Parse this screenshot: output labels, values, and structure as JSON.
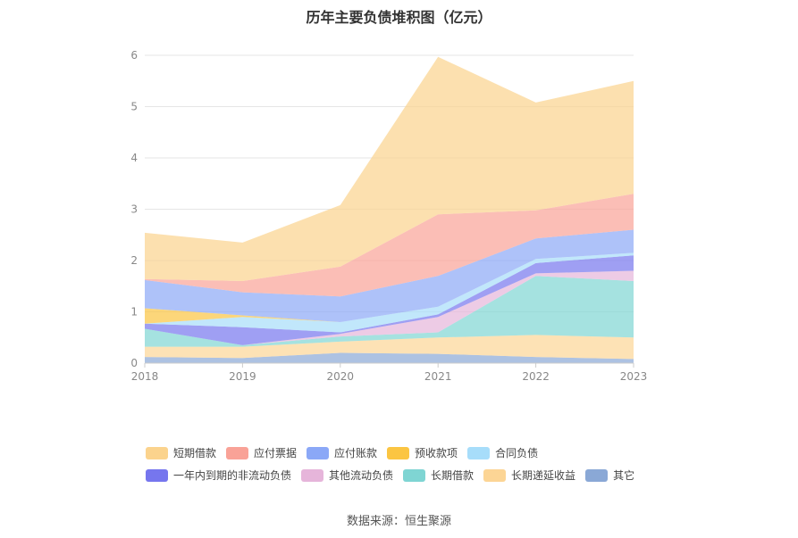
{
  "chart_data": {
    "type": "area",
    "title": "历年主要负债堆积图（亿元）",
    "stacked": true,
    "categories": [
      "2018",
      "2019",
      "2020",
      "2021",
      "2022",
      "2023"
    ],
    "ylim": [
      0,
      6
    ],
    "yticks": [
      0,
      1,
      2,
      3,
      4,
      5,
      6
    ],
    "grid": true,
    "legend_position": "bottom",
    "series": [
      {
        "name": "短期借款",
        "color": "#fbd38d",
        "values": [
          0.9,
          0.75,
          1.2,
          3.07,
          2.1,
          2.2
        ]
      },
      {
        "name": "应付票据",
        "color": "#f9a297",
        "values": [
          0.02,
          0.22,
          0.58,
          1.2,
          0.55,
          0.7
        ]
      },
      {
        "name": "应付账款",
        "color": "#8ba8f7",
        "values": [
          0.55,
          0.45,
          0.5,
          0.6,
          0.4,
          0.45
        ]
      },
      {
        "name": "预收款项",
        "color": "#fbc542",
        "values": [
          0.3,
          0.03,
          0.0,
          0.0,
          0.0,
          0.0
        ]
      },
      {
        "name": "合同负债",
        "color": "#a7ddfa",
        "values": [
          0.0,
          0.2,
          0.2,
          0.15,
          0.08,
          0.05
        ]
      },
      {
        "name": "一年内到期的非流动负债",
        "color": "#7676ee",
        "values": [
          0.1,
          0.35,
          0.03,
          0.05,
          0.2,
          0.3
        ]
      },
      {
        "name": "其他流动负债",
        "color": "#e6b5da",
        "values": [
          0.0,
          0.0,
          0.05,
          0.3,
          0.05,
          0.2
        ]
      },
      {
        "name": "长期借款",
        "color": "#7fd5d3",
        "values": [
          0.35,
          0.03,
          0.1,
          0.1,
          1.15,
          1.1
        ]
      },
      {
        "name": "长期递延收益",
        "color": "#fcd595",
        "values": [
          0.2,
          0.22,
          0.22,
          0.32,
          0.43,
          0.42
        ]
      },
      {
        "name": "其它",
        "color": "#8aa8d6",
        "values": [
          0.12,
          0.1,
          0.2,
          0.18,
          0.12,
          0.08
        ]
      }
    ]
  },
  "source": "数据来源：恒生聚源"
}
